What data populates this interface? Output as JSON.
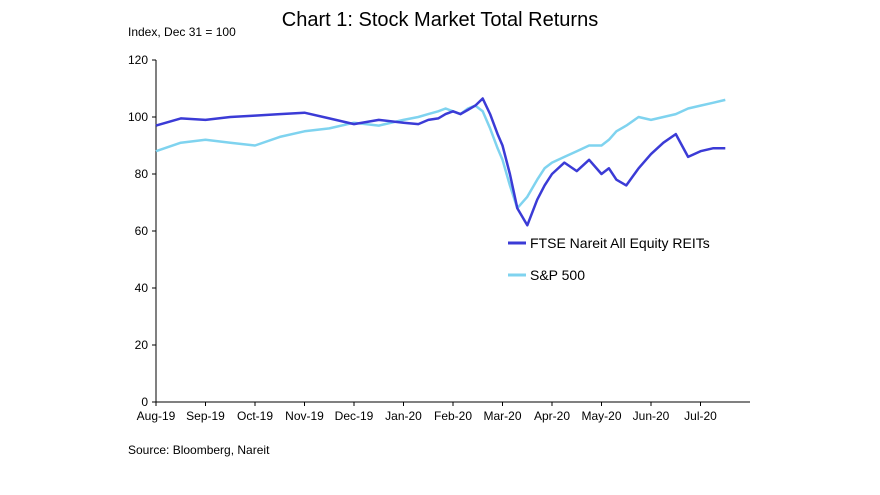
{
  "chart_data": {
    "type": "line",
    "title": "Chart 1: Stock Market Total Returns",
    "unit_label": "Index, Dec 31 = 100",
    "source": "Source: Bloomberg, Nareit",
    "ylim": [
      0,
      120
    ],
    "yticks": [
      "0",
      "20",
      "40",
      "60",
      "80",
      "100",
      "120"
    ],
    "xticks": [
      "Aug-19",
      "Sep-19",
      "Oct-19",
      "Nov-19",
      "Dec-19",
      "Jan-20",
      "Feb-20",
      "Mar-20",
      "Apr-20",
      "May-20",
      "Jun-20",
      "Jul-20"
    ],
    "grid": false,
    "legend_position": "center-right",
    "x": [
      0,
      0.5,
      1,
      1.5,
      2,
      2.5,
      3,
      3.5,
      4,
      4.5,
      5,
      5.3,
      5.5,
      5.7,
      5.85,
      6,
      6.15,
      6.3,
      6.45,
      6.6,
      6.75,
      6.9,
      7,
      7.15,
      7.3,
      7.5,
      7.7,
      7.85,
      8,
      8.25,
      8.5,
      8.75,
      9,
      9.15,
      9.3,
      9.5,
      9.75,
      10,
      10.25,
      10.5,
      10.75,
      11,
      11.25,
      11.5
    ],
    "series": [
      {
        "name": "FTSE Nareit All Equity REITs",
        "color": "#3b3bd6",
        "values": [
          97,
          99.5,
          99,
          100,
          100.5,
          101,
          101.5,
          99.5,
          97.5,
          99,
          98,
          97.5,
          99,
          99.5,
          101,
          102,
          101,
          102.5,
          104,
          106.5,
          101,
          94,
          90,
          80,
          68,
          62,
          71,
          76,
          80,
          84,
          81,
          85,
          80,
          82,
          78,
          76,
          82,
          87,
          91,
          94,
          86,
          88,
          89,
          89
        ]
      },
      {
        "name": "S&P 500",
        "color": "#7fd3ef",
        "values": [
          88,
          91,
          92,
          91,
          90,
          93,
          95,
          96,
          98,
          97,
          99,
          100,
          101,
          102,
          103,
          102,
          101,
          103,
          104,
          102,
          96,
          89,
          85,
          76,
          68,
          72,
          78,
          82,
          84,
          86,
          88,
          90,
          90,
          92,
          95,
          97,
          100,
          99,
          100,
          101,
          103,
          104,
          105,
          106
        ]
      }
    ]
  }
}
